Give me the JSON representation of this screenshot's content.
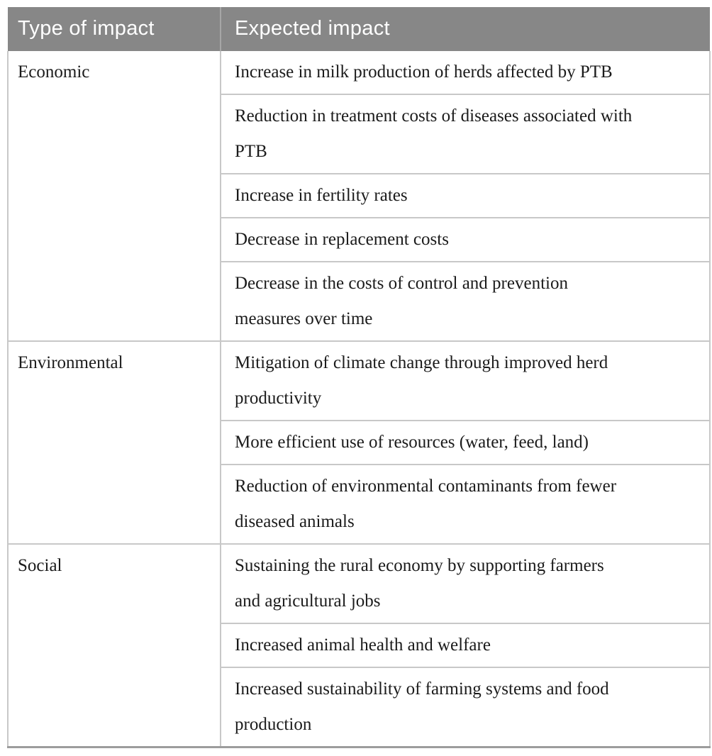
{
  "table": {
    "headers": [
      "Type of impact",
      "Expected impact"
    ],
    "groups": [
      {
        "type": "Economic",
        "impacts": [
          "Increase in milk production of herds affected by PTB",
          "Reduction in treatment costs of diseases associated with\nPTB",
          "Increase in fertility rates",
          "Decrease in replacement costs",
          "Decrease in the costs of control and prevention\nmeasures over time"
        ]
      },
      {
        "type": "Environmental",
        "impacts": [
          "Mitigation of climate change through improved herd\nproductivity",
          "More efficient use of resources (water, feed, land)",
          "Reduction of environmental contaminants from fewer\ndiseased animals"
        ]
      },
      {
        "type": "Social",
        "impacts": [
          "Sustaining the rural economy by supporting farmers\nand agricultural jobs",
          "Increased animal health and welfare",
          "Increased sustainability of farming systems and food\nproduction"
        ]
      }
    ]
  },
  "theme": {
    "header_bg": "#878787",
    "header_text_color": "#ffffff",
    "grid_line_color": "#c8c8c8",
    "bottom_border_color": "#9c9c9c",
    "body_text_color": "#1b1b1b"
  }
}
